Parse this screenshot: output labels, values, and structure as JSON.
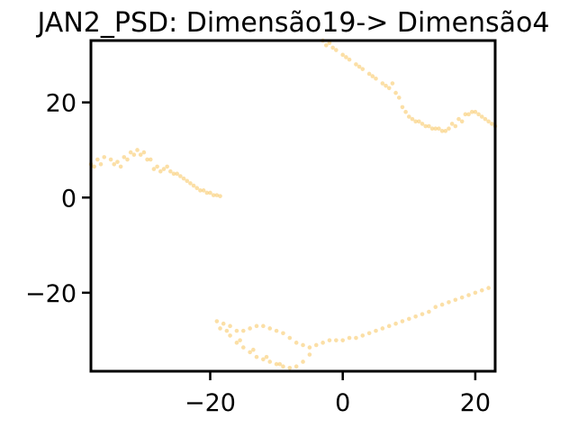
{
  "chart_data": {
    "type": "scatter",
    "title": "JAN2_PSD: Dimensão19-> Dimensão4",
    "xlabel": "",
    "ylabel": "",
    "xlim": [
      -38,
      23
    ],
    "ylim": [
      -36.5,
      33
    ],
    "xticks": [
      -20,
      0,
      20
    ],
    "yticks": [
      -20,
      0,
      20
    ],
    "xtick_labels": [
      "−20",
      "0",
      "20"
    ],
    "ytick_labels": [
      "−20",
      "0",
      "20"
    ],
    "grid": false,
    "marker_color": "#f9c96a",
    "series": [
      {
        "x": [
          -38,
          -37,
          -36,
          -35,
          -34,
          -33,
          -32,
          -31,
          -30,
          -29,
          -28,
          -27,
          -26,
          -25,
          -24,
          -23,
          -22,
          -21,
          -20,
          -19,
          -18.5,
          -37.5,
          -36.5,
          -34.5,
          -33.5,
          -32.5,
          -31.5,
          -30.5,
          -29.5,
          -28.5,
          -27.5,
          -26.5,
          -25.5,
          -24.5,
          -23.5,
          -22.5,
          -21.5,
          -20.5,
          -19.5
        ],
        "y": [
          7,
          8,
          8.5,
          8,
          7.5,
          8.5,
          9.5,
          10,
          9.5,
          8,
          6.5,
          6,
          5.5,
          5,
          4,
          3,
          2,
          1.5,
          1,
          0.5,
          0.3,
          6.5,
          7,
          7,
          6.5,
          8,
          9,
          9,
          8,
          6,
          5.5,
          6.5,
          5,
          4.5,
          3.5,
          2.5,
          1.5,
          1,
          0.5
        ]
      },
      {
        "x": [
          -3,
          -2,
          -1,
          0,
          1,
          2,
          3,
          4,
          5,
          6,
          7,
          8,
          9,
          10,
          11,
          12,
          13,
          14,
          15,
          16,
          17,
          18,
          19,
          20,
          21,
          22,
          23,
          -2.5,
          -1.5,
          0.5,
          2.5,
          4.5,
          6.5,
          7.5,
          8.5,
          9.5,
          10.5,
          11.5,
          12.5,
          13.5,
          14.5,
          15.5,
          16.5,
          17.5,
          18.5,
          19.5,
          20.5,
          21.5,
          22.5
        ],
        "y": [
          33,
          32.5,
          31,
          30,
          29,
          28,
          27,
          26,
          25,
          24,
          23,
          22,
          19,
          17,
          16,
          15.5,
          15,
          14.5,
          14,
          14.5,
          15,
          16,
          17.5,
          18,
          17,
          16,
          15,
          32,
          31.5,
          29.5,
          27.5,
          25.5,
          23.5,
          24,
          21,
          18,
          16.5,
          16,
          15,
          14.5,
          14.5,
          14,
          15.5,
          16.5,
          17.5,
          18,
          17.5,
          16.5,
          15.5
        ]
      },
      {
        "x": [
          -19,
          -18,
          -17,
          -16,
          -15,
          -14,
          -13,
          -12,
          -11,
          -10,
          -9,
          -8,
          -7,
          -6,
          -5,
          -4,
          -3,
          -2,
          -1,
          0,
          1,
          2,
          3,
          4,
          5,
          6,
          7,
          8,
          9,
          10,
          11,
          12,
          13,
          14,
          15,
          16,
          17,
          18,
          19,
          20,
          21,
          22,
          -18.5,
          -17,
          -16,
          -15,
          -14,
          -13,
          -12,
          -11,
          -10,
          -9,
          -8,
          -7,
          -6,
          -5,
          -17.5,
          -15.5,
          -13.5,
          -11.5,
          -9.5
        ],
        "y": [
          -26,
          -26.5,
          -27,
          -28,
          -28,
          -27.5,
          -27,
          -27,
          -27.5,
          -28,
          -28.5,
          -29.5,
          -30.5,
          -31,
          -31.5,
          -31,
          -30.5,
          -30,
          -30,
          -30,
          -29.5,
          -29.5,
          -29,
          -28.5,
          -28,
          -27.5,
          -27,
          -26.5,
          -26,
          -25.5,
          -25,
          -24.5,
          -24,
          -23,
          -22.5,
          -22,
          -21.5,
          -21,
          -20.5,
          -20,
          -19.5,
          -19,
          -27.5,
          -29,
          -30.5,
          -31.5,
          -32.5,
          -33.5,
          -34,
          -34.5,
          -35,
          -35.5,
          -35.8,
          -35.5,
          -34.5,
          -33,
          -28,
          -30,
          -32,
          -33.5,
          -35
        ]
      }
    ]
  }
}
